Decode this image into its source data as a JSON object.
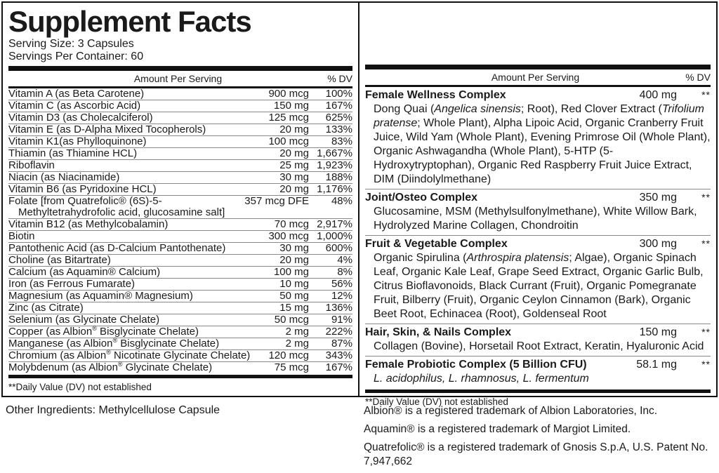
{
  "label": {
    "title": "Supplement Facts",
    "serving_size": "Serving Size: 3 Capsules",
    "servings_per_container": "Servings Per Container: 60"
  },
  "left_panel": {
    "header": {
      "amount": "Amount Per Serving",
      "dv": "% DV"
    },
    "rows": [
      {
        "name": [
          {
            "t": "Vitamin A (as Beta Carotene)"
          }
        ],
        "amount": "900 mcg",
        "dv": "100%"
      },
      {
        "name": [
          {
            "t": "Vitamin C (as Ascorbic Acid)"
          }
        ],
        "amount": "150 mg",
        "dv": "167%"
      },
      {
        "name": [
          {
            "t": "Vitamin D3 (as Cholecalciferol)"
          }
        ],
        "amount": "125 mcg",
        "dv": "625%"
      },
      {
        "name": [
          {
            "t": "Vitamin E (as D-Alpha Mixed Tocopherols)"
          }
        ],
        "amount": "20 mg",
        "dv": "133%"
      },
      {
        "name": [
          {
            "t": "Vitamin K1(as Phylloquinone)"
          }
        ],
        "amount": "100 mcg",
        "dv": "83%"
      },
      {
        "name": [
          {
            "t": "Thiamin (as Thiamine HCL)"
          }
        ],
        "amount": "20 mg",
        "dv": "1,667%"
      },
      {
        "name": [
          {
            "t": "Riboflavin"
          }
        ],
        "amount": "25 mg",
        "dv": "1,923%"
      },
      {
        "name": [
          {
            "t": "Niacin (as Niacinamide)"
          }
        ],
        "amount": "30 mg",
        "dv": "188%"
      },
      {
        "name": [
          {
            "t": "Vitamin B6 (as Pyridoxine HCL)"
          }
        ],
        "amount": "20 mg",
        "dv": "1,176%"
      },
      {
        "name": [
          {
            "t": "Folate [from Quatrefolic® (6S)-5-"
          },
          {
            "t": "Methyltetrahydrofolic acid, glucosamine salt]",
            "block": true
          }
        ],
        "amount": "357 mcg DFE",
        "dv": "48%"
      },
      {
        "name": [
          {
            "t": "Vitamin B12 (as Methylcobalamin)"
          }
        ],
        "amount": "70 mcg",
        "dv": "2,917%"
      },
      {
        "name": [
          {
            "t": "Biotin"
          }
        ],
        "amount": "300 mcg",
        "dv": "1,000%"
      },
      {
        "name": [
          {
            "t": "Pantothenic Acid (as D-Calcium Pantothenate)"
          }
        ],
        "amount": "30 mg",
        "dv": "600%"
      },
      {
        "name": [
          {
            "t": "Choline (as Bitartrate)"
          }
        ],
        "amount": "20 mg",
        "dv": "4%"
      },
      {
        "name": [
          {
            "t": "Calcium (as Aquamin® Calcium)"
          }
        ],
        "amount": "100 mg",
        "dv": "8%"
      },
      {
        "name": [
          {
            "t": "Iron (as Ferrous Fumarate)"
          }
        ],
        "amount": "10 mg",
        "dv": "56%"
      },
      {
        "name": [
          {
            "t": "Magnesium (as Aquamin® Magnesium)"
          }
        ],
        "amount": "50 mg",
        "dv": "12%"
      },
      {
        "name": [
          {
            "t": "Zinc (as Citrate)"
          }
        ],
        "amount": "15 mg",
        "dv": "136%"
      },
      {
        "name": [
          {
            "t": "Selenium (as Glycinate Chelate)"
          }
        ],
        "amount": "50 mcg",
        "dv": "91%"
      },
      {
        "name": [
          {
            "t": "Copper (as Albion"
          },
          {
            "t": "®",
            "sup": true
          },
          {
            "t": " Bisglycinate Chelate)"
          }
        ],
        "amount": "2 mg",
        "dv": "222%"
      },
      {
        "name": [
          {
            "t": "Manganese (as Albion"
          },
          {
            "t": "®",
            "sup": true
          },
          {
            "t": " Bisglycinate Chelate)"
          }
        ],
        "amount": "2 mg",
        "dv": "87%"
      },
      {
        "name": [
          {
            "t": "Chromium (as Albion"
          },
          {
            "t": "®",
            "sup": true
          },
          {
            "t": " Nicotinate Glycinate Chelate)"
          }
        ],
        "amount": "120 mcg",
        "dv": "343%"
      },
      {
        "name": [
          {
            "t": "Molybdenum (as Albion"
          },
          {
            "t": "®",
            "sup": true
          },
          {
            "t": " Glycinate Chelate)"
          }
        ],
        "amount": "75 mcg",
        "dv": "167%"
      }
    ],
    "footnote": "**Daily Value (DV) not established"
  },
  "right_panel": {
    "header": {
      "amount": "Amount Per Serving",
      "dv": "% DV"
    },
    "complexes": [
      {
        "name": "Female Wellness Complex",
        "amount": "400 mg",
        "dv": "**",
        "desc": [
          {
            "t": "Dong Quai ("
          },
          {
            "t": "Angelica sinensis",
            "i": true
          },
          {
            "t": "; Root), Red Clover Extract ("
          },
          {
            "t": "Trifolium pratense",
            "i": true
          },
          {
            "t": "; Whole Plant), Alpha Lipoic Acid, Organic Cranberry Fruit Juice, Wild Yam (Whole Plant), Evening Primrose Oil (Whole Plant), Organic Ashwagandha (Whole Plant), 5-HTP (5-Hydroxytryptophan), Organic Red Raspberry Fruit Juice Extract, DIM (Diindolylmethane)"
          }
        ]
      },
      {
        "name": "Joint/Osteo Complex",
        "amount": "350 mg",
        "dv": "**",
        "desc": [
          {
            "t": "Glucosamine, MSM (Methylsulfonylmethane), White Willow Bark, Hydrolyzed Marine Collagen, Chondroitin"
          }
        ]
      },
      {
        "name": "Fruit & Vegetable Complex",
        "amount": "300 mg",
        "dv": "**",
        "desc": [
          {
            "t": "Organic Spirulina ("
          },
          {
            "t": "Arthrospira platensis",
            "i": true
          },
          {
            "t": "; Algae), Organic Spinach Leaf, Organic Kale Leaf, Grape Seed Extract, Organic Garlic Bulb, Citrus Bioflavonoids, Black Currant (Fruit), Organic Pomegranate Fruit, Bilberry (Fruit), Organic Ceylon Cinnamon (Bark), Organic Beet Root, Echinacea (Root), Goldenseal Root"
          }
        ]
      },
      {
        "name": "Hair, Skin, & Nails Complex",
        "amount": "150 mg",
        "dv": "**",
        "desc": [
          {
            "t": "Collagen (Bovine), Horsetail Root Extract, Keratin, Hyaluronic Acid"
          }
        ]
      },
      {
        "name": "Female Probiotic Complex (5 Billion CFU)",
        "amount": "58.1 mg",
        "dv": "**",
        "desc": [
          {
            "t": "L. acidophilus, L. rhamnosus, L. fermentum",
            "i": true
          }
        ]
      }
    ],
    "footnote": "**Daily Value (DV) not established"
  },
  "other_ingredients": "Other Ingredients: Methylcellulose Capsule",
  "trademark_notes": [
    "Albion® is a registered trademark of Albion Laboratories, Inc.",
    "Aquamin® is a registered trademark of Margiot Limited.",
    "Quatrefolic® is a registered trademark of Gnosis S.p.A, U.S. Patent No. 7,947,662"
  ]
}
